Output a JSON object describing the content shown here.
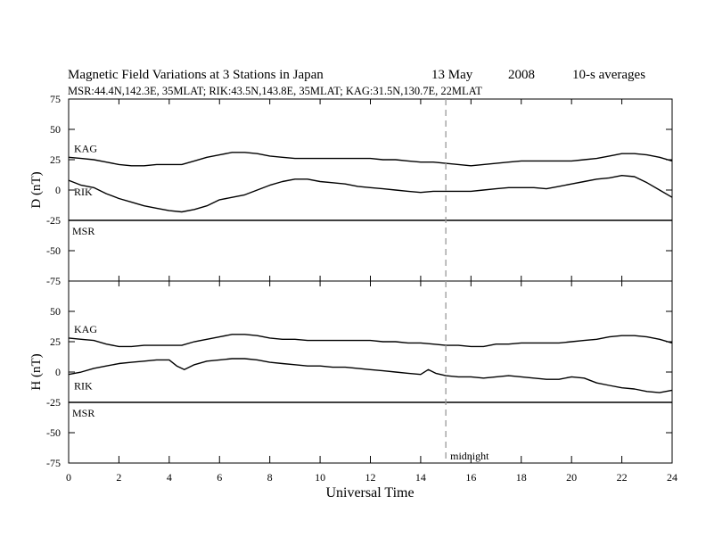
{
  "header": {
    "title": "Magnetic Field Variations at 3 Stations in Japan",
    "date_day": "13 May",
    "date_year": "2008",
    "averaging": "10-s averages",
    "stations": "MSR:44.4N,142.3E, 35MLAT;  RIK:43.5N,143.8E, 35MLAT;  KAG:31.5N,130.7E, 22MLAT"
  },
  "xaxis": {
    "label": "Universal Time",
    "ticks": [
      "0",
      "2",
      "4",
      "6",
      "8",
      "10",
      "12",
      "14",
      "16",
      "18",
      "20",
      "22",
      "24"
    ]
  },
  "midnight": {
    "x": 15,
    "label": "midnight"
  },
  "colors": {
    "line": "#000000",
    "midnight_line": "#9a9a9a",
    "background": "#ffffff"
  },
  "chart_data": [
    {
      "type": "line",
      "panel": "D",
      "ylabel": "D (nT)",
      "ylim": [
        -75,
        75
      ],
      "yticks": [
        "75",
        "50",
        "25",
        "0",
        "-25",
        "-50",
        "-75"
      ],
      "xlim": [
        0,
        24
      ],
      "series": [
        {
          "name": "KAG",
          "x": [
            0,
            0.5,
            1,
            1.5,
            2,
            2.5,
            3,
            3.5,
            4,
            4.5,
            5,
            5.5,
            6,
            6.5,
            7,
            7.5,
            8,
            8.5,
            9,
            9.5,
            10,
            10.5,
            11,
            11.5,
            12,
            12.5,
            13,
            13.5,
            14,
            14.5,
            15,
            15.5,
            16,
            16.5,
            17,
            17.5,
            18,
            18.5,
            19,
            19.5,
            20,
            20.5,
            21,
            21.5,
            22,
            22.5,
            23,
            23.5,
            24
          ],
          "y": [
            27,
            26,
            25,
            23,
            21,
            20,
            20,
            21,
            21,
            21,
            24,
            27,
            29,
            31,
            31,
            30,
            28,
            27,
            26,
            26,
            26,
            26,
            26,
            26,
            26,
            25,
            25,
            24,
            23,
            23,
            22,
            21,
            20,
            21,
            22,
            23,
            24,
            24,
            24,
            24,
            24,
            25,
            26,
            28,
            30,
            30,
            29,
            27,
            24
          ]
        },
        {
          "name": "RIK",
          "x": [
            0,
            0.5,
            1,
            1.5,
            2,
            2.5,
            3,
            3.5,
            4,
            4.5,
            5,
            5.5,
            6,
            6.5,
            7,
            7.5,
            8,
            8.5,
            9,
            9.5,
            10,
            10.5,
            11,
            11.5,
            12,
            12.5,
            13,
            13.5,
            14,
            14.5,
            15,
            15.5,
            16,
            16.5,
            17,
            17.5,
            18,
            18.5,
            19,
            19.5,
            20,
            20.5,
            21,
            21.5,
            22,
            22.5,
            23,
            23.5,
            24
          ],
          "y": [
            8,
            4,
            2,
            -3,
            -7,
            -10,
            -13,
            -15,
            -17,
            -18,
            -16,
            -13,
            -8,
            -6,
            -4,
            0,
            4,
            7,
            9,
            9,
            7,
            6,
            5,
            3,
            2,
            1,
            0,
            -1,
            -2,
            -1,
            -1,
            -1,
            -1,
            0,
            1,
            2,
            2,
            2,
            1,
            3,
            5,
            7,
            9,
            10,
            12,
            11,
            6,
            0,
            -6
          ]
        },
        {
          "name": "MSR",
          "x": [
            0,
            24
          ],
          "y": [
            -25,
            -25
          ]
        }
      ]
    },
    {
      "type": "line",
      "panel": "H",
      "ylabel": "H (nT)",
      "ylim": [
        -75,
        75
      ],
      "yticks": [
        "75",
        "50",
        "25",
        "0",
        "-25",
        "-50",
        "-75"
      ],
      "xlim": [
        0,
        24
      ],
      "series": [
        {
          "name": "KAG",
          "x": [
            0,
            0.5,
            1,
            1.5,
            2,
            2.5,
            3,
            3.5,
            4,
            4.5,
            5,
            5.5,
            6,
            6.5,
            7,
            7.5,
            8,
            8.5,
            9,
            9.5,
            10,
            10.5,
            11,
            11.5,
            12,
            12.5,
            13,
            13.5,
            14,
            14.5,
            15,
            15.5,
            16,
            16.5,
            17,
            17.5,
            18,
            18.5,
            19,
            19.5,
            20,
            20.5,
            21,
            21.5,
            22,
            22.5,
            23,
            23.5,
            24
          ],
          "y": [
            28,
            27,
            26,
            23,
            21,
            21,
            22,
            22,
            22,
            22,
            25,
            27,
            29,
            31,
            31,
            30,
            28,
            27,
            27,
            26,
            26,
            26,
            26,
            26,
            26,
            25,
            25,
            24,
            24,
            23,
            22,
            22,
            21,
            21,
            23,
            23,
            24,
            24,
            24,
            24,
            25,
            26,
            27,
            29,
            30,
            30,
            29,
            27,
            24
          ]
        },
        {
          "name": "RIK",
          "x": [
            0,
            0.5,
            1,
            1.5,
            2,
            2.5,
            3,
            3.5,
            4,
            4.3,
            4.6,
            5,
            5.5,
            6,
            6.5,
            7,
            7.5,
            8,
            8.5,
            9,
            9.5,
            10,
            10.5,
            11,
            11.5,
            12,
            12.5,
            13,
            13.5,
            14,
            14.3,
            14.6,
            15,
            15.5,
            16,
            16.5,
            17,
            17.5,
            18,
            18.5,
            19,
            19.5,
            20,
            20.5,
            21,
            21.5,
            22,
            22.5,
            23,
            23.5,
            24
          ],
          "y": [
            -2,
            0,
            3,
            5,
            7,
            8,
            9,
            10,
            10,
            5,
            2,
            6,
            9,
            10,
            11,
            11,
            10,
            8,
            7,
            6,
            5,
            5,
            4,
            4,
            3,
            2,
            1,
            0,
            -1,
            -2,
            2,
            -1,
            -3,
            -4,
            -4,
            -5,
            -4,
            -3,
            -4,
            -5,
            -6,
            -6,
            -4,
            -5,
            -9,
            -11,
            -13,
            -14,
            -16,
            -17,
            -15
          ]
        },
        {
          "name": "MSR",
          "x": [
            0,
            24
          ],
          "y": [
            -25,
            -25
          ]
        }
      ]
    }
  ]
}
